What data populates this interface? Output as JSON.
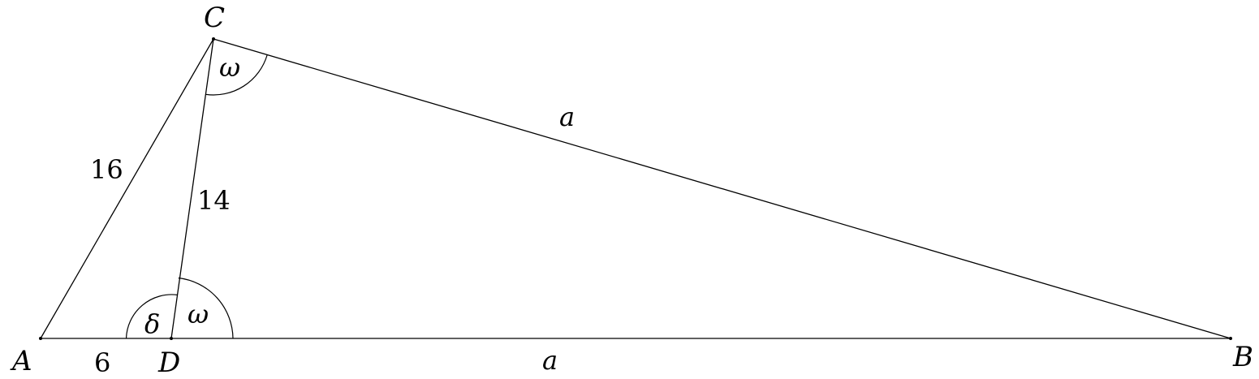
{
  "points": {
    "A": "A",
    "B": "B",
    "C": "C",
    "D": "D"
  },
  "lengths": {
    "AC": "16",
    "CD": "14",
    "AD": "6",
    "CB": "a",
    "DB": "a"
  },
  "angles": {
    "C_omega": "ω",
    "D_omega": "ω",
    "D_delta": "δ"
  },
  "colors": {
    "ink": "#000000",
    "background": "#ffffff"
  }
}
